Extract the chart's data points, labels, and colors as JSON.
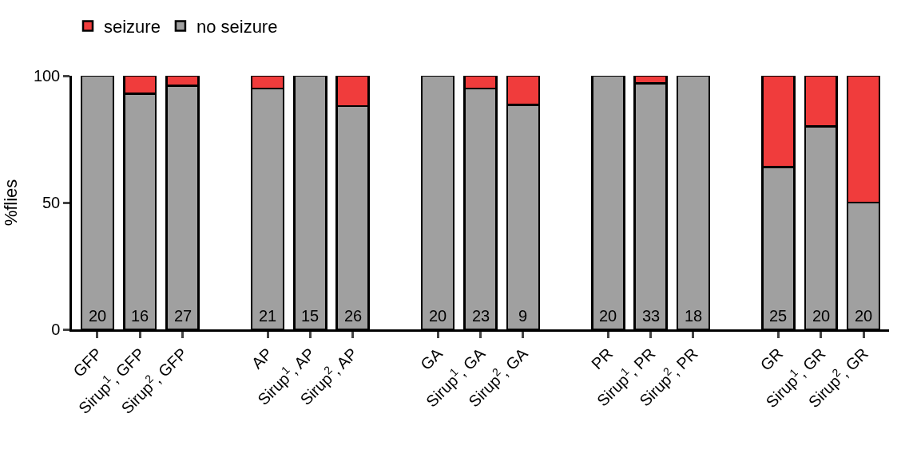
{
  "chart_data": {
    "type": "bar",
    "stacked": true,
    "ylabel": "%flies",
    "ylim": [
      0,
      100
    ],
    "yticks": [
      0,
      50,
      100
    ],
    "legend": "top left",
    "categories": [
      "GFP",
      "Sirup$^{1}$, GFP",
      "Sirup$^{2}$, GFP",
      null,
      "AP",
      "Sirup$^{1}$, AP",
      "Sirup$^{2}$, AP",
      null,
      "GA",
      "Sirup$^{1}$, GA",
      "Sirup$^{2}$, GA",
      null,
      "PR",
      "Sirup$^{1}$, PR",
      "Sirup$^{2}$, PR",
      null,
      "GR",
      "Sirup$^{1}$, GR",
      "Sirup$^{2}$, GR"
    ],
    "series": [
      {
        "name": "no seizure",
        "color": "#a0a0a0",
        "values": [
          100,
          93,
          96,
          null,
          95,
          100,
          88,
          null,
          100,
          95,
          88.5,
          null,
          100,
          97,
          100,
          null,
          64,
          80,
          50
        ]
      },
      {
        "name": "seizure",
        "color": "#f03c3c",
        "values": [
          null,
          7,
          4,
          null,
          5,
          null,
          12,
          null,
          null,
          5,
          11.5,
          null,
          null,
          3,
          null,
          null,
          36,
          20,
          50
        ]
      }
    ],
    "annotations": [
      "20",
      "16",
      "27",
      "21",
      "15",
      "26",
      "20",
      "23",
      "9",
      "20",
      "33",
      "18",
      "25",
      "20",
      "20"
    ]
  }
}
